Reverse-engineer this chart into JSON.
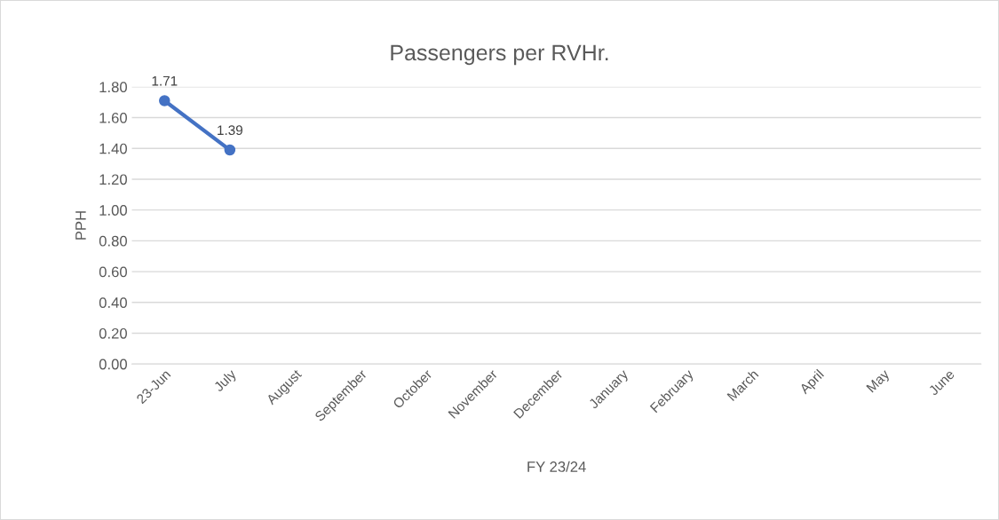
{
  "chart_data": {
    "type": "line",
    "title": "Passengers per RVHr.",
    "xlabel": "FY 23/24",
    "ylabel": "PPH",
    "categories": [
      "23-Jun",
      "July",
      "August",
      "September",
      "October",
      "November",
      "December",
      "January",
      "February",
      "March",
      "April",
      "May",
      "June"
    ],
    "series": [
      {
        "color": "#4472c4",
        "values": [
          1.71,
          1.39,
          null,
          null,
          null,
          null,
          null,
          null,
          null,
          null,
          null,
          null,
          null
        ]
      }
    ],
    "ylim": [
      0,
      1.8
    ],
    "yticks": [
      {
        "value": 0,
        "label": "0.00"
      },
      {
        "value": 0.2,
        "label": "0.20"
      },
      {
        "value": 0.4,
        "label": "0.40"
      },
      {
        "value": 0.6,
        "label": "0.60"
      },
      {
        "value": 0.8,
        "label": "0.80"
      },
      {
        "value": 1.0,
        "label": "1.00"
      },
      {
        "value": 1.2,
        "label": "1.20"
      },
      {
        "value": 1.4,
        "label": "1.40"
      },
      {
        "value": 1.6,
        "label": "1.60"
      },
      {
        "value": 1.8,
        "label": "1.80"
      }
    ],
    "grid": "y",
    "marker": "circle",
    "line_style": "solid",
    "data_labels": true,
    "legend": false
  }
}
